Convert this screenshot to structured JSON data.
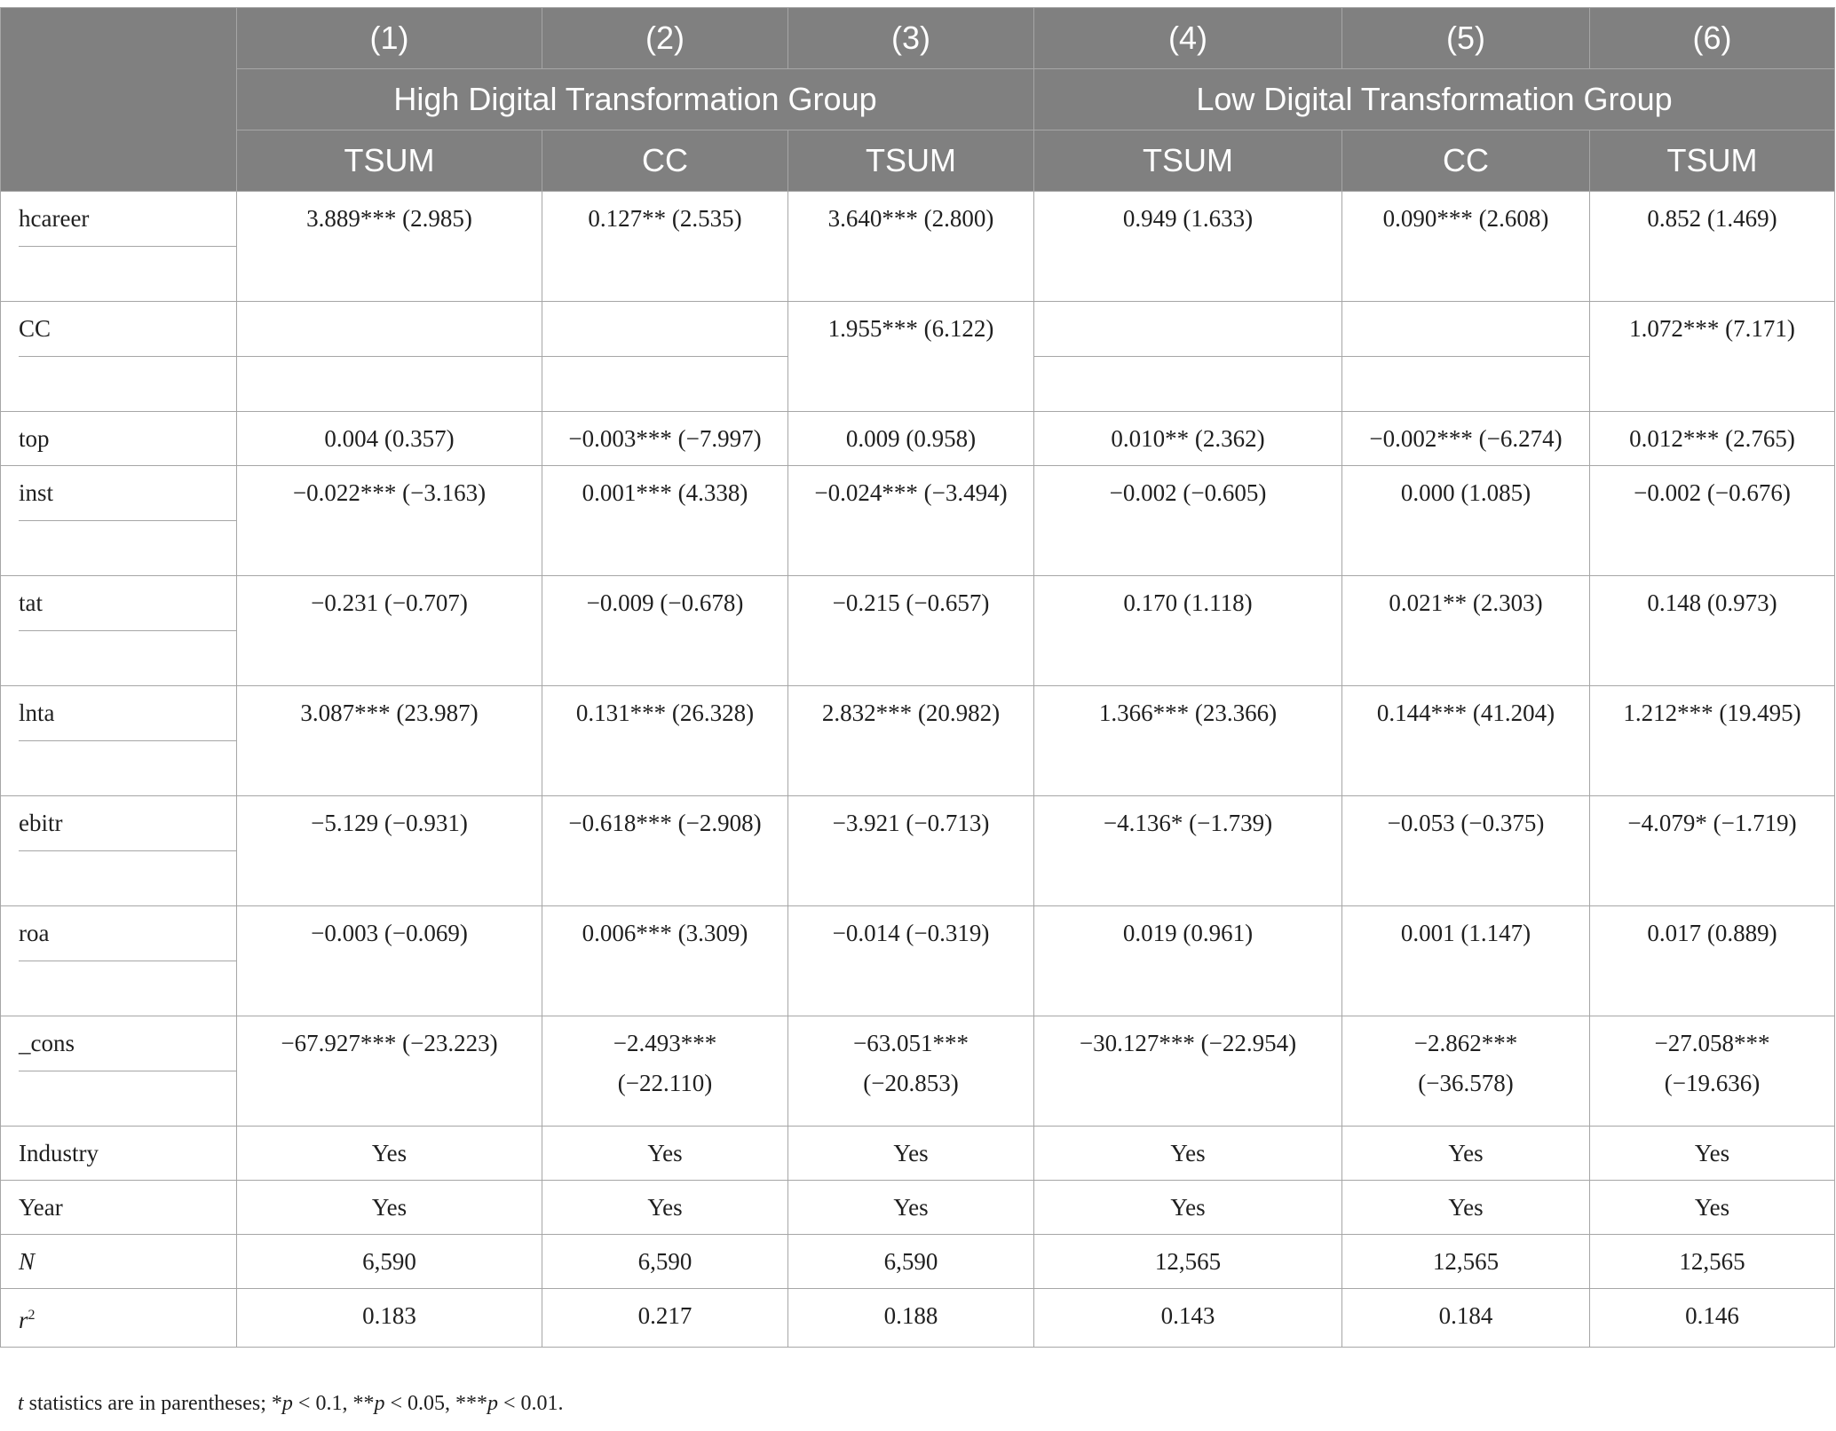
{
  "header": {
    "col_numbers": [
      "(1)",
      "(2)",
      "(3)",
      "(4)",
      "(5)",
      "(6)"
    ],
    "groups": [
      "High Digital Transformation Group",
      "Low Digital Transformation Group"
    ],
    "dep_vars": [
      "TSUM",
      "CC",
      "TSUM",
      "TSUM",
      "CC",
      "TSUM"
    ]
  },
  "rows": {
    "hcareer": {
      "label": "hcareer",
      "v": [
        "3.889*** (2.985)",
        "0.127** (2.535)",
        "3.640*** (2.800)",
        "0.949 (1.633)",
        "0.090*** (2.608)",
        "0.852 (1.469)"
      ]
    },
    "cc": {
      "label": "CC",
      "v": [
        "",
        "",
        "1.955*** (6.122)",
        "",
        "",
        "1.072*** (7.171)"
      ]
    },
    "top": {
      "label": "top",
      "v": [
        "0.004 (0.357)",
        "−0.003*** (−7.997)",
        "0.009 (0.958)",
        "0.010** (2.362)",
        "−0.002*** (−6.274)",
        "0.012*** (2.765)"
      ]
    },
    "inst": {
      "label": "inst",
      "v": [
        "−0.022*** (−3.163)",
        "0.001*** (4.338)",
        "−0.024*** (−3.494)",
        "−0.002 (−0.605)",
        "0.000 (1.085)",
        "−0.002 (−0.676)"
      ]
    },
    "tat": {
      "label": "tat",
      "v": [
        "−0.231 (−0.707)",
        "−0.009 (−0.678)",
        "−0.215 (−0.657)",
        "0.170 (1.118)",
        "0.021** (2.303)",
        "0.148 (0.973)"
      ]
    },
    "lnta": {
      "label": "lnta",
      "v": [
        "3.087*** (23.987)",
        "0.131*** (26.328)",
        "2.832*** (20.982)",
        "1.366*** (23.366)",
        "0.144*** (41.204)",
        "1.212*** (19.495)"
      ]
    },
    "ebitr": {
      "label": "ebitr",
      "v": [
        "−5.129 (−0.931)",
        "−0.618*** (−2.908)",
        "−3.921 (−0.713)",
        "−4.136* (−1.739)",
        "−0.053 (−0.375)",
        "−4.079* (−1.719)"
      ]
    },
    "roa": {
      "label": "roa",
      "v": [
        "−0.003 (−0.069)",
        "0.006*** (3.309)",
        "−0.014 (−0.319)",
        "0.019 (0.961)",
        "0.001 (1.147)",
        "0.017 (0.889)"
      ]
    },
    "cons": {
      "label": "_cons",
      "v1": [
        "−67.927*** (−23.223)",
        "−2.493***",
        "−63.051***",
        "−30.127*** (−22.954)",
        "−2.862***",
        "−27.058***"
      ],
      "v2": [
        "",
        "(−22.110)",
        "(−20.853)",
        "",
        "(−36.578)",
        "(−19.636)"
      ]
    },
    "industry": {
      "label": "Industry",
      "v": [
        "Yes",
        "Yes",
        "Yes",
        "Yes",
        "Yes",
        "Yes"
      ]
    },
    "year": {
      "label": "Year",
      "v": [
        "Yes",
        "Yes",
        "Yes",
        "Yes",
        "Yes",
        "Yes"
      ]
    },
    "n": {
      "label": "N",
      "v": [
        "6,590",
        "6,590",
        "6,590",
        "12,565",
        "12,565",
        "12,565"
      ]
    },
    "r2": {
      "label_base": "r",
      "label_sup": "2",
      "v": [
        "0.183",
        "0.217",
        "0.188",
        "0.143",
        "0.184",
        "0.146"
      ]
    }
  },
  "note": {
    "t": "t",
    "part1": " statistics are in parentheses; *",
    "p1": "p",
    "part2": " < 0.1, **",
    "p2": "p",
    "part3": " < 0.05, ***",
    "p3": "p",
    "part4": " < 0.01."
  }
}
